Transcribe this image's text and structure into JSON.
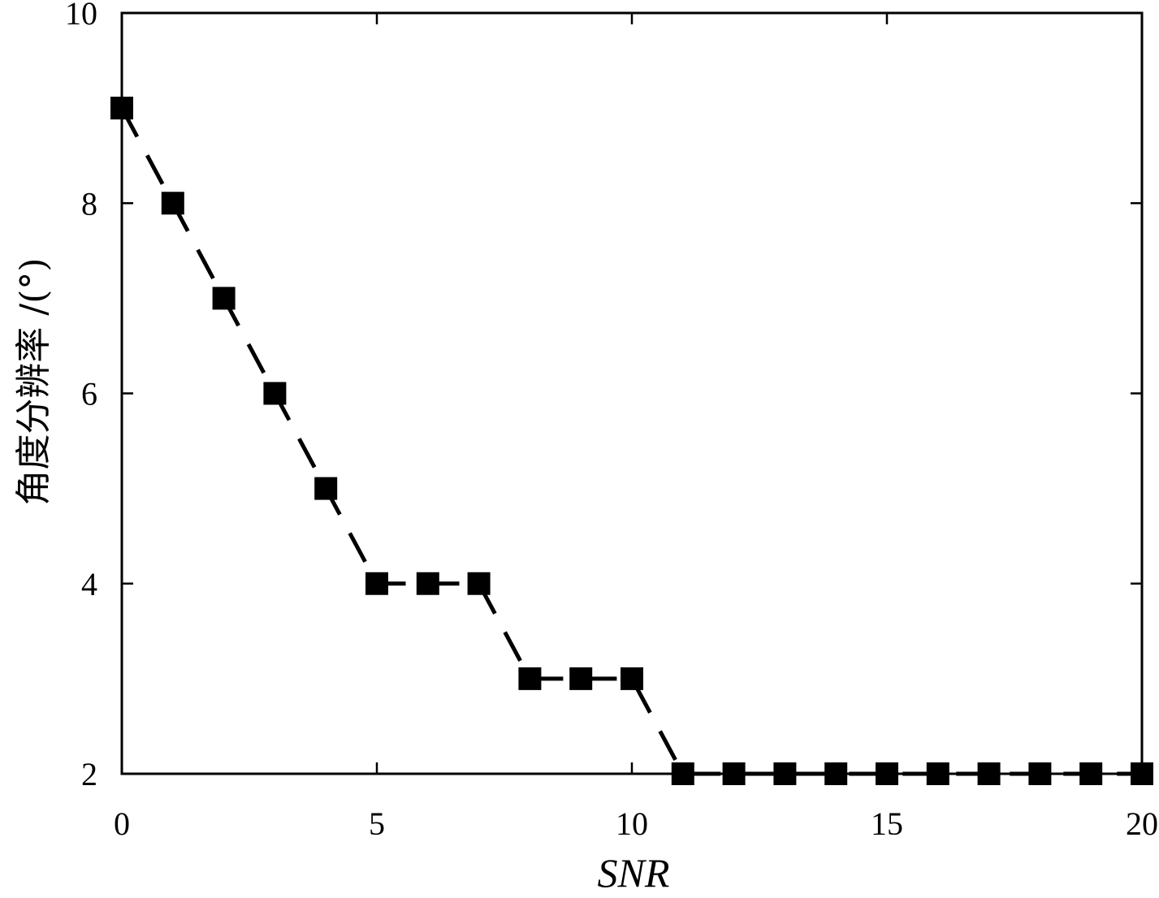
{
  "chart_data": {
    "type": "line",
    "xlabel": "SNR",
    "ylabel": "角度分辨率 /(°)",
    "xlim": [
      0,
      20
    ],
    "ylim": [
      2,
      10
    ],
    "x_ticks": [
      0,
      5,
      10,
      15,
      20
    ],
    "y_ticks": [
      2,
      4,
      6,
      8,
      10
    ],
    "x_tick_labels": [
      "0",
      "5",
      "10",
      "15",
      "20"
    ],
    "y_tick_labels": [
      "2",
      "4",
      "6",
      "8",
      "10"
    ],
    "grid": false,
    "series": [
      {
        "line_style": "dashed",
        "marker": "square",
        "color": "#000000",
        "x": [
          0,
          1,
          2,
          3,
          4,
          5,
          6,
          7,
          8,
          9,
          10,
          11,
          12,
          13,
          14,
          15,
          16,
          17,
          18,
          19,
          20
        ],
        "y": [
          9,
          8,
          7,
          6,
          5,
          4,
          4,
          4,
          3,
          3,
          3,
          2,
          2,
          2,
          2,
          2,
          2,
          2,
          2,
          2,
          2
        ]
      }
    ]
  }
}
